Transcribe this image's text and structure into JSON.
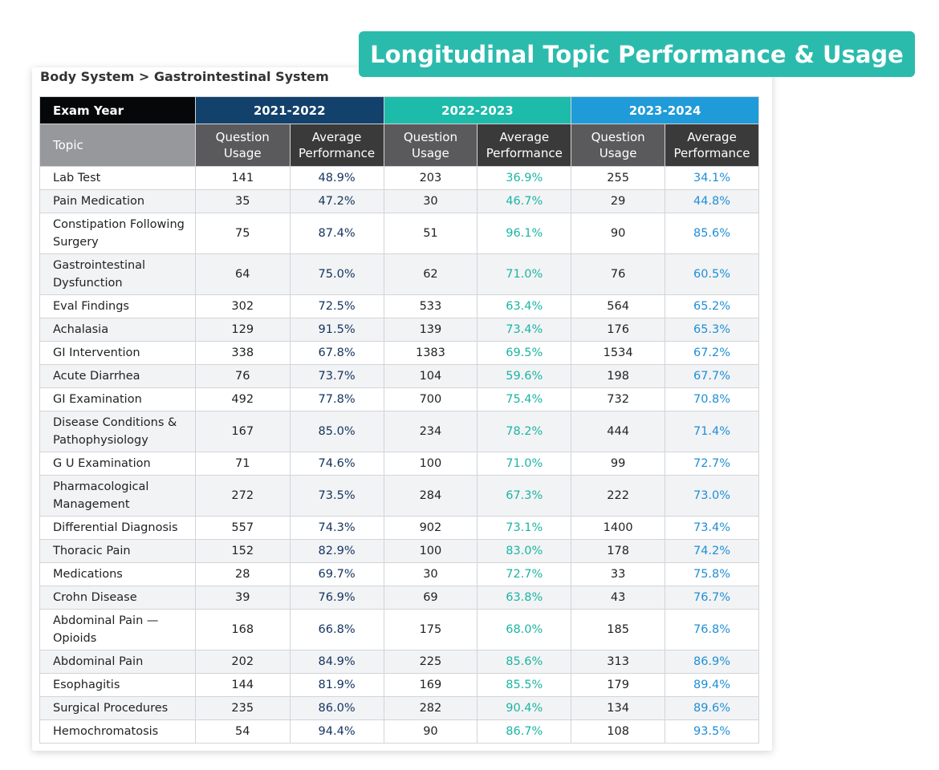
{
  "title": "Longitudinal Topic Performance & Usage",
  "breadcrumb": "Body System > Gastrointestinal System",
  "header": {
    "exam_year": "Exam Year",
    "topic": "Topic",
    "question_usage": "Question Usage",
    "average_performance": "Average Performance",
    "years": [
      {
        "label": "2021-2022",
        "color": "#12416b"
      },
      {
        "label": "2022-2023",
        "color": "#1dbbaa"
      },
      {
        "label": "2023-2024",
        "color": "#1f9bd9"
      }
    ]
  },
  "rows": [
    {
      "topic": "Lab Test",
      "v": [
        "141",
        "48.9%",
        "203",
        "36.9%",
        "255",
        "34.1%"
      ]
    },
    {
      "topic": "Pain Medication",
      "v": [
        "35",
        "47.2%",
        "30",
        "46.7%",
        "29",
        "44.8%"
      ]
    },
    {
      "topic": "Constipation Following Surgery",
      "v": [
        "75",
        "87.4%",
        "51",
        "96.1%",
        "90",
        "85.6%"
      ]
    },
    {
      "topic": "Gastrointestinal Dysfunction",
      "v": [
        "64",
        "75.0%",
        "62",
        "71.0%",
        "76",
        "60.5%"
      ]
    },
    {
      "topic": "Eval Findings",
      "v": [
        "302",
        "72.5%",
        "533",
        "63.4%",
        "564",
        "65.2%"
      ]
    },
    {
      "topic": "Achalasia",
      "v": [
        "129",
        "91.5%",
        "139",
        "73.4%",
        "176",
        "65.3%"
      ]
    },
    {
      "topic": "GI Intervention",
      "v": [
        "338",
        "67.8%",
        "1383",
        "69.5%",
        "1534",
        "67.2%"
      ]
    },
    {
      "topic": "Acute Diarrhea",
      "v": [
        "76",
        "73.7%",
        "104",
        "59.6%",
        "198",
        "67.7%"
      ]
    },
    {
      "topic": "GI Examination",
      "v": [
        "492",
        "77.8%",
        "700",
        "75.4%",
        "732",
        "70.8%"
      ]
    },
    {
      "topic": "Disease Conditions & Pathophysiology",
      "v": [
        "167",
        "85.0%",
        "234",
        "78.2%",
        "444",
        "71.4%"
      ]
    },
    {
      "topic": "G U Examination",
      "v": [
        "71",
        "74.6%",
        "100",
        "71.0%",
        "99",
        "72.7%"
      ]
    },
    {
      "topic": "Pharmacological Management",
      "v": [
        "272",
        "73.5%",
        "284",
        "67.3%",
        "222",
        "73.0%"
      ]
    },
    {
      "topic": "Differential Diagnosis",
      "v": [
        "557",
        "74.3%",
        "902",
        "73.1%",
        "1400",
        "73.4%"
      ]
    },
    {
      "topic": "Thoracic Pain",
      "v": [
        "152",
        "82.9%",
        "100",
        "83.0%",
        "178",
        "74.2%"
      ]
    },
    {
      "topic": "Medications",
      "v": [
        "28",
        "69.7%",
        "30",
        "72.7%",
        "33",
        "75.8%"
      ]
    },
    {
      "topic": "Crohn Disease",
      "v": [
        "39",
        "76.9%",
        "69",
        "63.8%",
        "43",
        "76.7%"
      ]
    },
    {
      "topic": "Abdominal Pain — Opioids",
      "v": [
        "168",
        "66.8%",
        "175",
        "68.0%",
        "185",
        "76.8%"
      ]
    },
    {
      "topic": "Abdominal Pain",
      "v": [
        "202",
        "84.9%",
        "225",
        "85.6%",
        "313",
        "86.9%"
      ]
    },
    {
      "topic": "Esophagitis",
      "v": [
        "144",
        "81.9%",
        "169",
        "85.5%",
        "179",
        "89.4%"
      ]
    },
    {
      "topic": "Surgical Procedures",
      "v": [
        "235",
        "86.0%",
        "282",
        "90.4%",
        "134",
        "89.6%"
      ]
    },
    {
      "topic": "Hemochromatosis",
      "v": [
        "54",
        "94.4%",
        "90",
        "86.7%",
        "108",
        "93.5%"
      ]
    }
  ]
}
